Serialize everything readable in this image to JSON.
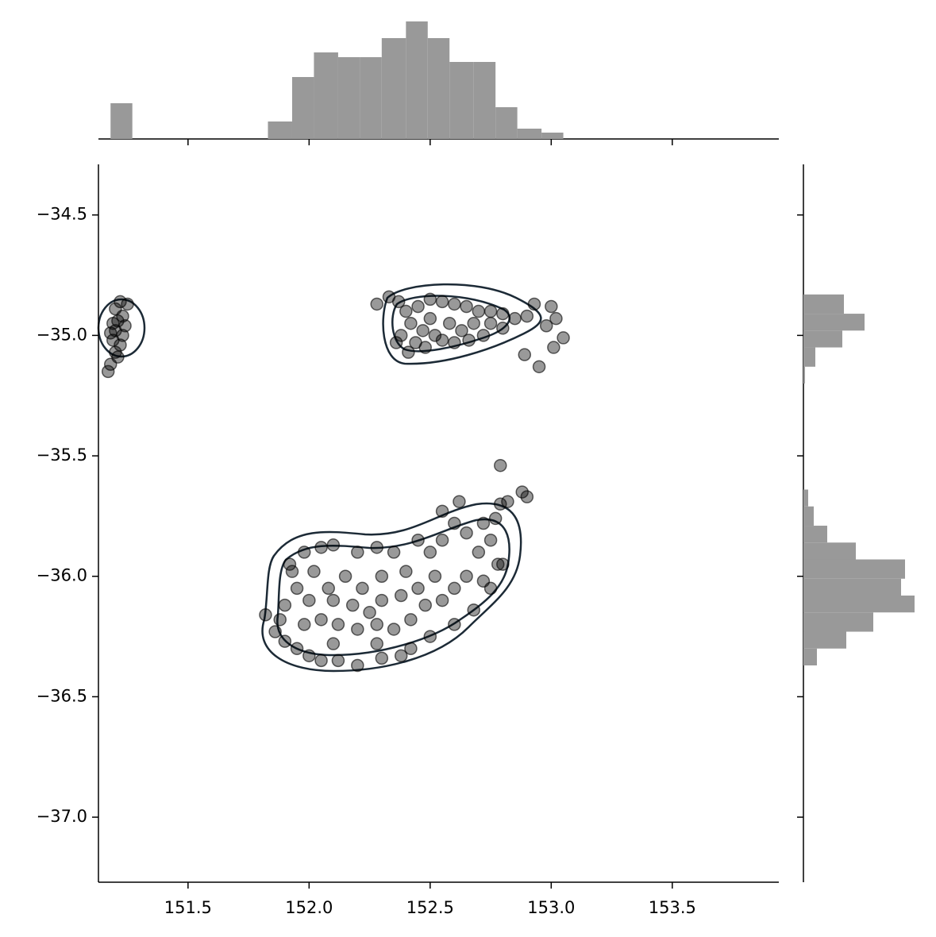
{
  "chart_data": {
    "type": "scatter",
    "xlim": [
      151.13,
      153.94
    ],
    "ylim": [
      -37.27,
      -34.29
    ],
    "xticks": [
      151.5,
      {
        "value": 152,
        "label": "152.0"
      },
      152.5,
      {
        "value": 153,
        "label": "153.0"
      },
      153.5
    ],
    "yticks": [
      {
        "value": -34.5,
        "label": "−34.5"
      },
      {
        "value": -35,
        "label": "−35.0"
      },
      {
        "value": -35.5,
        "label": "−35.5"
      },
      {
        "value": -36,
        "label": "−36.0"
      },
      {
        "value": -36.5,
        "label": "−36.5"
      },
      {
        "value": -37,
        "label": "−37.0"
      }
    ],
    "color": "#000000",
    "x": [
      151.22,
      151.25,
      151.2,
      151.23,
      151.19,
      151.24,
      151.2,
      151.23,
      151.19,
      151.22,
      151.2,
      151.21,
      151.18,
      151.17,
      151.18,
      151.21,
      152.28,
      152.33,
      152.37,
      152.4,
      152.45,
      152.5,
      152.55,
      152.6,
      152.65,
      152.7,
      152.75,
      152.8,
      152.85,
      152.9,
      152.93,
      153.0,
      153.02,
      153.05,
      153.01,
      152.95,
      152.89,
      152.98,
      152.42,
      152.47,
      152.52,
      152.44,
      152.38,
      152.36,
      152.5,
      152.58,
      152.63,
      152.68,
      152.72,
      152.55,
      152.48,
      152.41,
      152.6,
      152.66,
      152.75,
      152.8,
      152.79,
      152.88,
      152.9,
      152.82,
      152.79,
      152.62,
      152.55,
      152.77,
      152.72,
      152.6,
      152.65,
      152.75,
      152.7,
      152.78,
      152.55,
      152.45,
      152.5,
      152.35,
      152.28,
      152.2,
      152.1,
      152.05,
      151.98,
      151.92,
      151.93,
      151.95,
      151.9,
      151.88,
      151.82,
      151.86,
      151.9,
      151.95,
      152.0,
      152.05,
      152.12,
      152.2,
      152.3,
      152.38,
      152.42,
      152.5,
      152.6,
      152.68,
      152.75,
      152.8,
      152.72,
      152.65,
      152.6,
      152.52,
      152.45,
      152.38,
      152.3,
      152.22,
      152.15,
      152.08,
      152.0,
      152.05,
      152.12,
      152.2,
      152.28,
      152.35,
      152.42,
      152.48,
      152.55,
      152.1,
      152.18,
      152.25,
      152.4,
      152.3,
      152.02,
      152.1,
      152.28,
      151.98
    ],
    "y": [
      -34.86,
      -34.87,
      -34.89,
      -34.92,
      -34.95,
      -34.96,
      -34.98,
      -35.0,
      -35.02,
      -35.04,
      -35.07,
      -35.09,
      -35.12,
      -35.15,
      -34.99,
      -34.94,
      -34.87,
      -34.84,
      -34.86,
      -34.9,
      -34.88,
      -34.85,
      -34.86,
      -34.87,
      -34.88,
      -34.9,
      -34.9,
      -34.91,
      -34.93,
      -34.92,
      -34.87,
      -34.88,
      -34.93,
      -35.01,
      -35.05,
      -35.13,
      -35.08,
      -34.96,
      -34.95,
      -34.98,
      -35.0,
      -35.03,
      -35.0,
      -35.03,
      -34.93,
      -34.95,
      -34.98,
      -34.95,
      -35.0,
      -35.02,
      -35.05,
      -35.07,
      -35.03,
      -35.02,
      -34.95,
      -34.97,
      -35.54,
      -35.65,
      -35.67,
      -35.69,
      -35.7,
      -35.69,
      -35.73,
      -35.76,
      -35.78,
      -35.78,
      -35.82,
      -35.85,
      -35.9,
      -35.95,
      -35.85,
      -35.85,
      -35.9,
      -35.9,
      -35.88,
      -35.9,
      -35.87,
      -35.88,
      -35.9,
      -35.95,
      -35.98,
      -36.05,
      -36.12,
      -36.18,
      -36.16,
      -36.23,
      -36.27,
      -36.3,
      -36.33,
      -36.35,
      -36.35,
      -36.37,
      -36.34,
      -36.33,
      -36.3,
      -36.25,
      -36.2,
      -36.14,
      -36.05,
      -35.95,
      -36.02,
      -36.0,
      -36.05,
      -36.0,
      -36.05,
      -36.08,
      -36.1,
      -36.05,
      -36.0,
      -36.05,
      -36.1,
      -36.18,
      -36.2,
      -36.22,
      -36.2,
      -36.22,
      -36.18,
      -36.12,
      -36.1,
      -36.1,
      -36.12,
      -36.15,
      -35.98,
      -36.0,
      -35.98,
      -36.28,
      -36.28,
      -36.2
    ],
    "marginal_x": {
      "type": "histogram",
      "color": "#999999",
      "bins": [
        151.18,
        151.27,
        151.37,
        151.46,
        151.55,
        151.65,
        151.74,
        151.83,
        151.93,
        152.02,
        152.12,
        152.21,
        152.3,
        152.4,
        152.49,
        152.58,
        152.68,
        152.77,
        152.86,
        152.96,
        153.05
      ],
      "counts": [
        45,
        0,
        0,
        0,
        0,
        0,
        0,
        22,
        78,
        109,
        103,
        103,
        127,
        148,
        127,
        97,
        97,
        40,
        13,
        8
      ]
    },
    "marginal_y": {
      "type": "histogram",
      "color": "#999999",
      "bins": [
        -36.37,
        -36.3,
        -36.23,
        -36.15,
        -36.08,
        -36.01,
        -35.93,
        -35.86,
        -35.79,
        -35.71,
        -35.64,
        -35.57,
        -35.49,
        -35.42,
        -35.35,
        -35.27,
        -35.2,
        -35.13,
        -35.05,
        -34.98,
        -34.91,
        -34.83
      ],
      "counts": [
        17,
        54,
        88,
        140,
        123,
        128,
        66,
        30,
        13,
        6,
        0,
        0,
        0,
        0,
        0,
        0,
        2,
        15,
        49,
        77,
        51
      ]
    }
  }
}
